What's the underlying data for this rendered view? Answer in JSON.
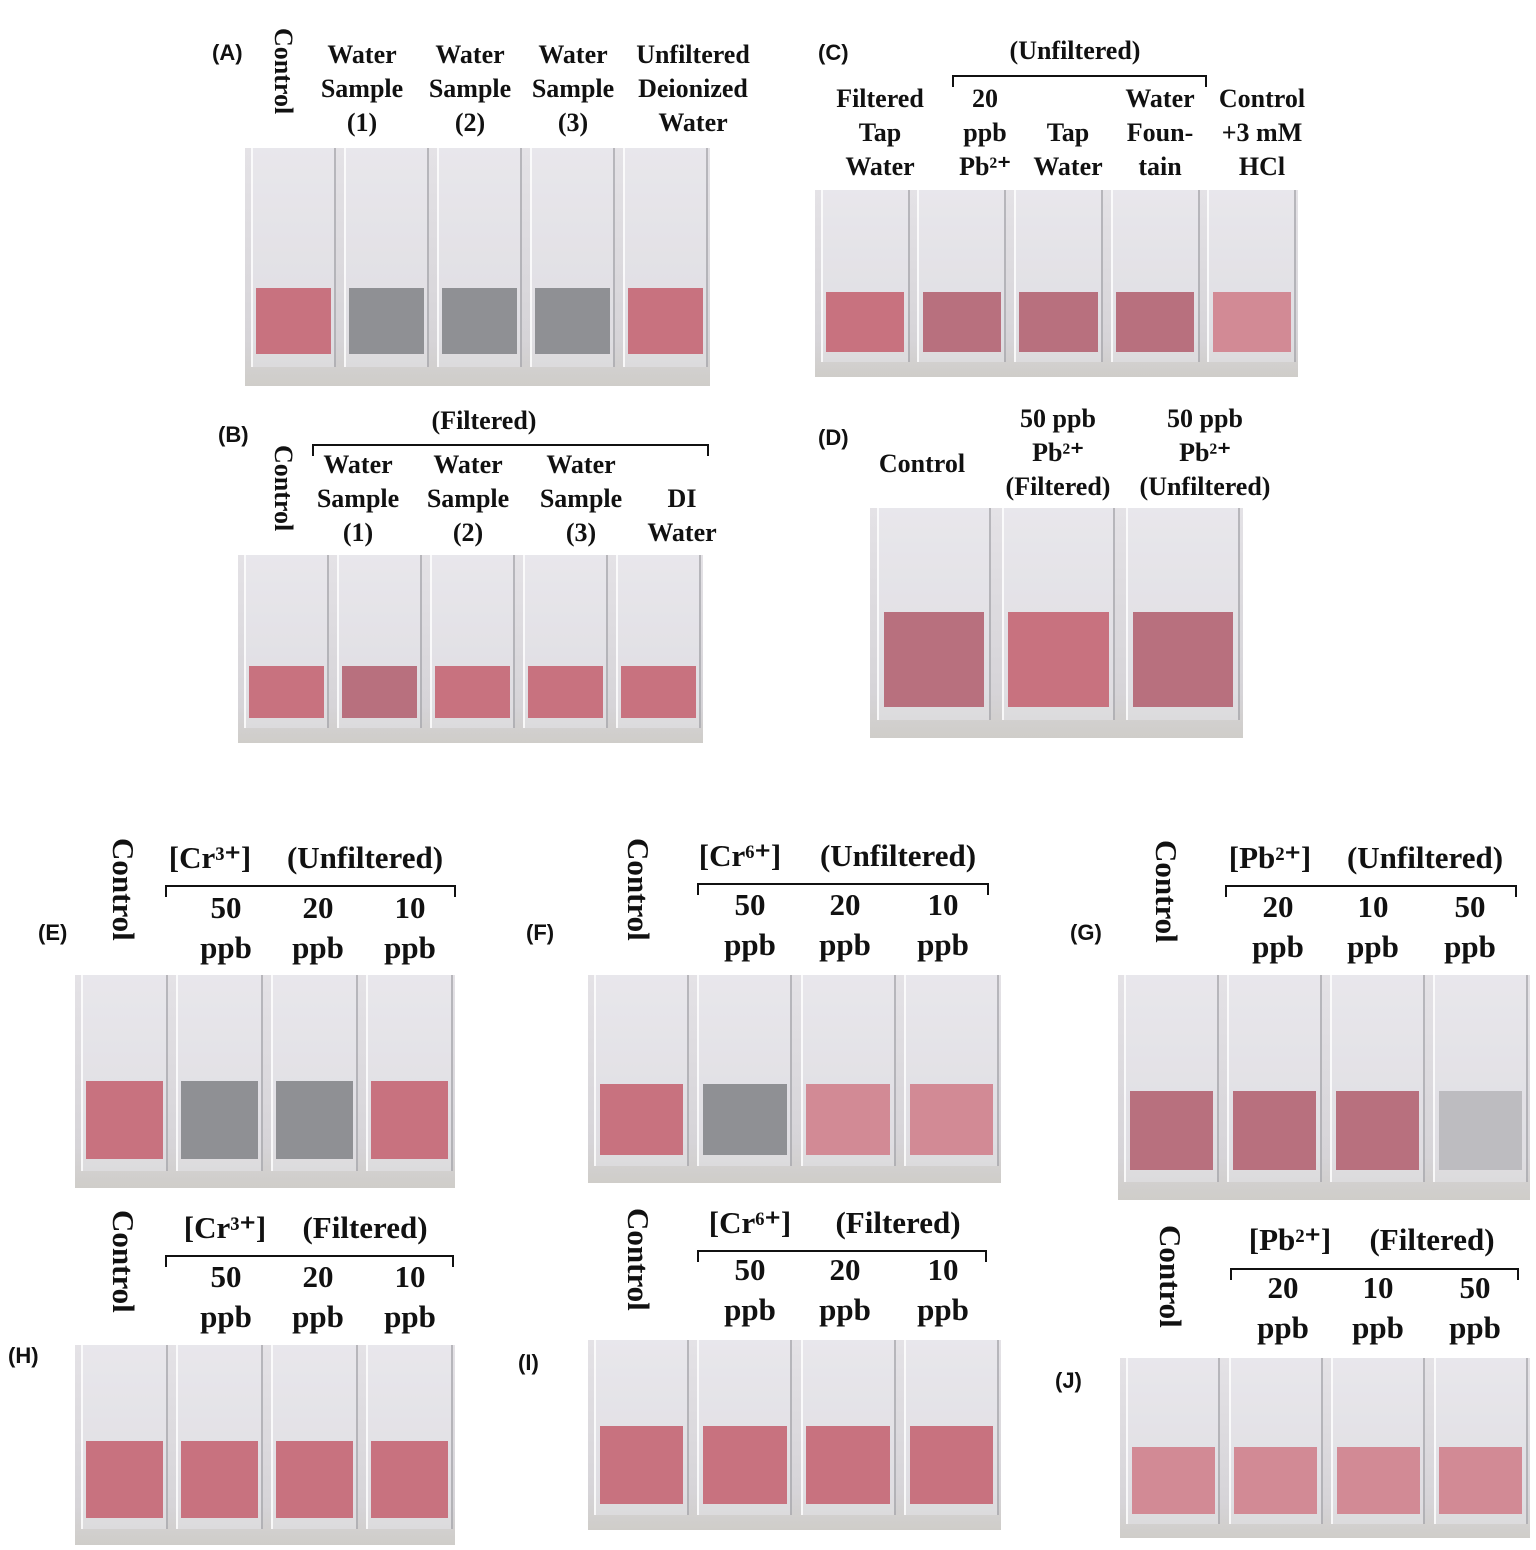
{
  "panels": [
    {
      "label": "(A)",
      "control": "Control",
      "columns": [
        [
          "Water",
          "Sample",
          "(1)"
        ],
        [
          "Water",
          "Sample",
          "(2)"
        ],
        [
          "Water",
          "Sample",
          "(3)"
        ],
        [
          "Unfiltered",
          "Deionized",
          "Water"
        ]
      ]
    },
    {
      "label": "(B)",
      "control": "Control",
      "group": "(Filtered)",
      "columns": [
        [
          "Water",
          "Sample",
          "(1)"
        ],
        [
          "Water",
          "Sample",
          "(2)"
        ],
        [
          "Water",
          "Sample",
          "(3)"
        ],
        [
          "DI",
          "Water"
        ]
      ]
    },
    {
      "label": "(C)",
      "group": "(Unfiltered)",
      "columns": [
        [
          "Filtered",
          "Tap",
          "Water"
        ],
        [
          "20",
          "ppb",
          "Pb²⁺"
        ],
        [
          "Tap",
          "Water"
        ],
        [
          "Water",
          "Foun-",
          "tain"
        ],
        [
          "Control",
          "+3 mM",
          "HCl"
        ]
      ]
    },
    {
      "label": "(D)",
      "columns": [
        [
          "Control"
        ],
        [
          "50 ppb",
          "Pb²⁺",
          "(Filtered)"
        ],
        [
          "50 ppb",
          "Pb²⁺",
          "(Unfiltered)"
        ]
      ]
    },
    {
      "label": "(E)",
      "control": "Control",
      "ion": "[Cr³⁺]",
      "group": "(Unfiltered)",
      "columns": [
        [
          "50",
          "ppb"
        ],
        [
          "20",
          "ppb"
        ],
        [
          "10",
          "ppb"
        ]
      ]
    },
    {
      "label": "(F)",
      "control": "Control",
      "ion": "[Cr⁶⁺]",
      "group": "(Unfiltered)",
      "columns": [
        [
          "50",
          "ppb"
        ],
        [
          "20",
          "ppb"
        ],
        [
          "10",
          "ppb"
        ]
      ]
    },
    {
      "label": "(G)",
      "control": "Control",
      "ion": "[Pb²⁺]",
      "group": "(Unfiltered)",
      "columns": [
        [
          "20",
          "ppb"
        ],
        [
          "10",
          "ppb"
        ],
        [
          "50",
          "ppb"
        ]
      ]
    },
    {
      "label": "(H)",
      "control": "Control",
      "ion": "[Cr³⁺]",
      "group": "(Filtered)",
      "columns": [
        [
          "50",
          "ppb"
        ],
        [
          "20",
          "ppb"
        ],
        [
          "10",
          "ppb"
        ]
      ]
    },
    {
      "label": "(I)",
      "control": "Control",
      "ion": "[Cr⁶⁺]",
      "group": "(Filtered)",
      "columns": [
        [
          "50",
          "ppb"
        ],
        [
          "20",
          "ppb"
        ],
        [
          "10",
          "ppb"
        ]
      ]
    },
    {
      "label": "(J)",
      "control": "Control",
      "ion": "[Pb²⁺]",
      "group": "(Filtered)",
      "columns": [
        [
          "20",
          "ppb"
        ],
        [
          "10",
          "ppb"
        ],
        [
          "50",
          "ppb"
        ]
      ]
    }
  ]
}
